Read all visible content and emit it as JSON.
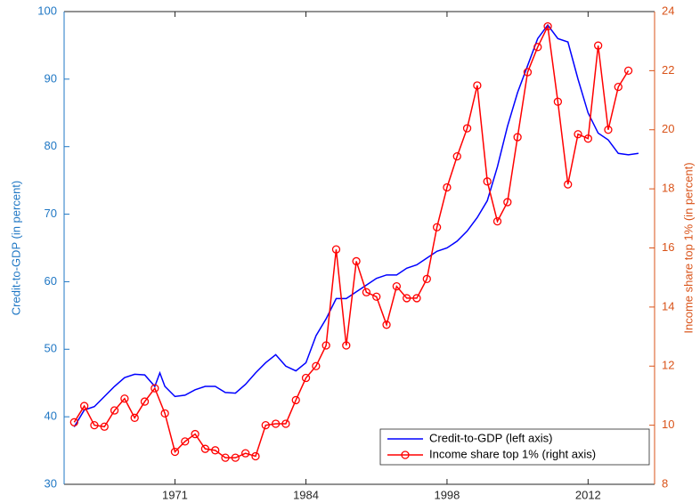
{
  "chart_data": {
    "type": "line",
    "y_label": "Credit-to-GDP (in percent)",
    "y2_label": "Income share top 1% (in percent)",
    "xlim": [
      1960,
      2018.6
    ],
    "xticks": [
      1971,
      1984,
      1998,
      2012
    ],
    "ylim": [
      30,
      100
    ],
    "yticks": [
      30,
      40,
      50,
      60,
      70,
      80,
      90,
      100
    ],
    "y2lim": [
      8,
      24
    ],
    "y2ticks": [
      8,
      10,
      12,
      14,
      16,
      18,
      20,
      22,
      24
    ],
    "y_axis_color": "#1f77c4",
    "y2_axis_color": "#d95319",
    "legend": "southeast",
    "series": [
      {
        "name": "Credit-to-GDP (left axis)",
        "color": "#0000ff",
        "marker": "none",
        "x": [
          1961,
          1962,
          1963,
          1964,
          1965,
          1966,
          1967,
          1968,
          1969,
          1969.5,
          1970,
          1971,
          1972,
          1973,
          1974,
          1975,
          1976,
          1977,
          1978,
          1979,
          1980,
          1981,
          1982,
          1983,
          1984,
          1985,
          1986,
          1987,
          1988,
          1989,
          1990,
          1991,
          1992,
          1993,
          1994,
          1995,
          1996,
          1997,
          1998,
          1999,
          2000,
          2001,
          2002,
          2003,
          2004,
          2005,
          2006,
          2007,
          2008,
          2009,
          2010,
          2011,
          2012,
          2013,
          2014,
          2015,
          2016,
          2017
        ],
        "values": [
          38.5,
          41,
          41.5,
          43,
          44.5,
          45.8,
          46.3,
          46.2,
          44.5,
          46.5,
          44.5,
          43,
          43.2,
          44,
          44.5,
          44.5,
          43.6,
          43.5,
          44.8,
          46.5,
          48,
          49.2,
          47.5,
          46.8,
          48,
          52,
          54.5,
          57.5,
          57.5,
          58.5,
          59.5,
          60.5,
          61,
          61,
          62,
          62.5,
          63.5,
          64.5,
          65,
          66,
          67.5,
          69.5,
          72,
          77,
          83,
          88,
          92,
          96,
          98,
          96,
          95.5,
          90,
          85,
          82,
          81,
          79,
          78.8,
          79
        ]
      },
      {
        "name": "Income share top 1% (right axis)",
        "color": "#ff0000",
        "marker": "circle",
        "axis": "y2",
        "x": [
          1961,
          1962,
          1963,
          1964,
          1965,
          1966,
          1967,
          1968,
          1969,
          1970,
          1971,
          1972,
          1973,
          1974,
          1975,
          1976,
          1977,
          1978,
          1979,
          1980,
          1981,
          1982,
          1983,
          1984,
          1985,
          1986,
          1987,
          1988,
          1989,
          1990,
          1991,
          1992,
          1993,
          1994,
          1995,
          1996,
          1997,
          1998,
          1999,
          2000,
          2001,
          2002,
          2003,
          2004,
          2005,
          2006,
          2007,
          2008,
          2009,
          2010,
          2011,
          2012,
          2013,
          2014,
          2015,
          2016
        ],
        "values": [
          10.1,
          10.65,
          10,
          9.95,
          10.5,
          10.9,
          10.25,
          10.8,
          11.25,
          10.4,
          9.1,
          9.45,
          9.7,
          9.2,
          9.15,
          8.9,
          8.9,
          9.05,
          8.95,
          10,
          10.05,
          10.05,
          10.85,
          11.6,
          12,
          12.7,
          15.95,
          12.7,
          15.55,
          14.5,
          14.35,
          13.4,
          14.7,
          14.3,
          14.3,
          14.95,
          16.7,
          18.05,
          19.1,
          20.05,
          21.5,
          18.25,
          16.9,
          17.55,
          19.75,
          21.95,
          22.8,
          23.5,
          20.95,
          18.15,
          19.85,
          19.7,
          22.85,
          20,
          21.45,
          22
        ]
      }
    ]
  }
}
